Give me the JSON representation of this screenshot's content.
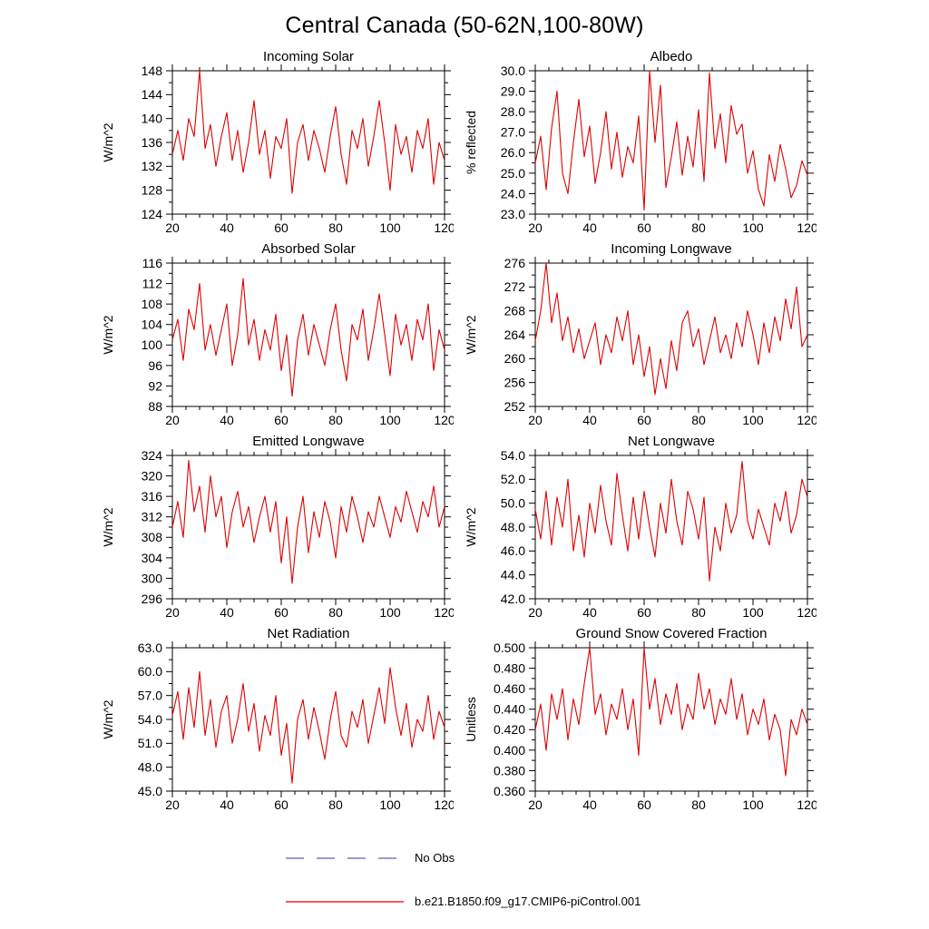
{
  "title": "Central Canada (50-62N,100-80W)",
  "legend": {
    "no_obs_label": "No Obs",
    "no_obs_color": "#7a7ab8",
    "run_label": "b.e21.B1850.f09_g17.CMIP6-piControl.001",
    "run_color": "#dd0000"
  },
  "chart_data": [
    {
      "type": "line",
      "title": "Incoming Solar",
      "ylabel": "W/m^2",
      "ylim": [
        124,
        148
      ],
      "ytick_step": 4,
      "y_decimals": 0,
      "xlim": [
        20,
        120
      ],
      "xticks": [
        20,
        40,
        60,
        80,
        100,
        120
      ],
      "xminor_step": 5,
      "x_start": 20,
      "x_step": 2,
      "grid": false,
      "series": [
        {
          "name": "b.e21.B1850.f09_g17.CMIP6-piControl.001",
          "color": "#dd0000",
          "values": [
            134,
            138,
            133,
            140,
            137,
            148,
            135,
            139,
            132,
            137,
            141,
            133,
            138,
            131,
            136,
            143,
            134,
            138,
            130,
            137,
            135,
            140,
            127.5,
            136,
            139,
            133,
            138,
            135,
            131,
            137,
            142,
            134,
            129,
            138,
            135,
            140,
            132,
            137,
            143,
            136,
            128,
            139,
            134,
            137,
            131,
            138,
            135,
            140,
            129,
            136,
            133
          ]
        }
      ]
    },
    {
      "type": "line",
      "title": "Albedo",
      "ylabel": "% reflected",
      "ylim": [
        23.0,
        30.0
      ],
      "ytick_step": 1.0,
      "y_decimals": 1,
      "xlim": [
        20,
        120
      ],
      "xticks": [
        20,
        40,
        60,
        80,
        100,
        120
      ],
      "xminor_step": 5,
      "x_start": 20,
      "x_step": 2,
      "grid": false,
      "series": [
        {
          "name": "b.e21.B1850.f09_g17.CMIP6-piControl.001",
          "color": "#dd0000",
          "values": [
            25.5,
            26.8,
            24.2,
            27.2,
            29.0,
            25.0,
            24.0,
            26.5,
            28.6,
            25.8,
            27.3,
            24.5,
            26.0,
            28.0,
            25.2,
            27.0,
            24.8,
            26.3,
            25.5,
            27.8,
            23.2,
            30.0,
            26.5,
            29.3,
            24.3,
            25.8,
            27.5,
            24.9,
            26.8,
            25.3,
            28.1,
            24.6,
            29.9,
            26.2,
            27.9,
            25.5,
            28.3,
            26.9,
            27.4,
            25.0,
            26.1,
            24.2,
            23.4,
            25.9,
            24.6,
            26.4,
            25.2,
            23.8,
            24.4,
            25.6,
            24.9
          ]
        }
      ]
    },
    {
      "type": "line",
      "title": "Absorbed Solar",
      "ylabel": "W/m^2",
      "ylim": [
        88,
        116
      ],
      "ytick_step": 4,
      "y_decimals": 0,
      "xlim": [
        20,
        120
      ],
      "xticks": [
        20,
        40,
        60,
        80,
        100,
        120
      ],
      "xminor_step": 5,
      "x_start": 20,
      "x_step": 2,
      "grid": false,
      "series": [
        {
          "name": "b.e21.B1850.f09_g17.CMIP6-piControl.001",
          "color": "#dd0000",
          "values": [
            101,
            105,
            97,
            107,
            103,
            112,
            99,
            104,
            98,
            103,
            108,
            96,
            102,
            113,
            100,
            105,
            97,
            103,
            99,
            106,
            95,
            102,
            90,
            101,
            106,
            98,
            104,
            100,
            96,
            103,
            108,
            99,
            93,
            104,
            101,
            107,
            97,
            103,
            110,
            102,
            94,
            106,
            100,
            104,
            97,
            105,
            101,
            108,
            95,
            103,
            99
          ]
        }
      ]
    },
    {
      "type": "line",
      "title": "Incoming Longwave",
      "ylabel": "W/m^2",
      "ylim": [
        252,
        276
      ],
      "ytick_step": 4,
      "y_decimals": 0,
      "xlim": [
        20,
        120
      ],
      "xticks": [
        20,
        40,
        60,
        80,
        100,
        120
      ],
      "xminor_step": 5,
      "x_start": 20,
      "x_step": 2,
      "grid": false,
      "series": [
        {
          "name": "b.e21.B1850.f09_g17.CMIP6-piControl.001",
          "color": "#dd0000",
          "values": [
            263,
            268,
            276,
            266,
            271,
            263,
            267,
            261,
            265,
            260,
            263,
            266,
            259,
            264,
            261,
            267,
            263,
            268,
            259,
            264,
            257,
            262,
            254,
            260,
            255,
            263,
            258,
            266,
            268,
            262,
            265,
            259,
            263,
            267,
            261,
            264,
            260,
            266,
            262,
            268,
            264,
            259,
            266,
            261,
            267,
            263,
            270,
            265,
            272,
            262,
            264
          ]
        }
      ]
    },
    {
      "type": "line",
      "title": "Emitted Longwave",
      "ylabel": "W/m^2",
      "ylim": [
        296,
        324
      ],
      "ytick_step": 4,
      "y_decimals": 0,
      "xlim": [
        20,
        120
      ],
      "xticks": [
        20,
        40,
        60,
        80,
        100,
        120
      ],
      "xminor_step": 5,
      "x_start": 20,
      "x_step": 2,
      "grid": false,
      "series": [
        {
          "name": "b.e21.B1850.f09_g17.CMIP6-piControl.001",
          "color": "#dd0000",
          "values": [
            310,
            315,
            308,
            323,
            313,
            318,
            309,
            320,
            312,
            316,
            306,
            313,
            317,
            310,
            314,
            307,
            312,
            316,
            309,
            315,
            303,
            312,
            299,
            310,
            316,
            305,
            313,
            308,
            315,
            311,
            304,
            314,
            309,
            316,
            312,
            307,
            313,
            310,
            316,
            312,
            308,
            314,
            311,
            317,
            313,
            309,
            315,
            312,
            318,
            310,
            314
          ]
        }
      ]
    },
    {
      "type": "line",
      "title": "Net Longwave",
      "ylabel": "W/m^2",
      "ylim": [
        42.0,
        54.0
      ],
      "ytick_step": 2.0,
      "y_decimals": 1,
      "xlim": [
        20,
        120
      ],
      "xticks": [
        20,
        40,
        60,
        80,
        100,
        120
      ],
      "xminor_step": 5,
      "x_start": 20,
      "x_step": 2,
      "grid": false,
      "series": [
        {
          "name": "b.e21.B1850.f09_g17.CMIP6-piControl.001",
          "color": "#dd0000",
          "values": [
            49.5,
            47.0,
            51.0,
            46.5,
            50.5,
            48.0,
            52.0,
            46.0,
            49.0,
            45.5,
            50.0,
            47.5,
            51.5,
            48.5,
            46.5,
            52.5,
            49.0,
            46.0,
            50.5,
            47.0,
            51.0,
            48.0,
            45.5,
            50.0,
            47.5,
            52.0,
            48.5,
            46.5,
            51.0,
            49.5,
            47.0,
            50.5,
            43.5,
            48.0,
            46.0,
            50.0,
            47.5,
            49.0,
            53.5,
            48.5,
            47.0,
            49.5,
            48.0,
            46.5,
            50.0,
            48.5,
            51.0,
            47.5,
            49.0,
            52.0,
            50.5
          ]
        }
      ]
    },
    {
      "type": "line",
      "title": "Net Radiation",
      "ylabel": "W/m^2",
      "ylim": [
        45.0,
        63.0
      ],
      "ytick_step": 3.0,
      "y_decimals": 1,
      "xlim": [
        20,
        120
      ],
      "xticks": [
        20,
        40,
        60,
        80,
        100,
        120
      ],
      "xminor_step": 5,
      "x_start": 20,
      "x_step": 2,
      "grid": false,
      "series": [
        {
          "name": "b.e21.B1850.f09_g17.CMIP6-piControl.001",
          "color": "#dd0000",
          "values": [
            54.5,
            57.5,
            51.5,
            58.0,
            53.0,
            60.0,
            52.0,
            56.5,
            50.5,
            55.0,
            57.0,
            51.0,
            54.0,
            58.5,
            52.5,
            56.0,
            50.0,
            54.5,
            52.0,
            57.0,
            49.5,
            53.5,
            46.0,
            54.0,
            56.5,
            51.5,
            55.5,
            52.5,
            49.0,
            54.0,
            57.5,
            52.0,
            50.5,
            55.0,
            53.0,
            56.5,
            51.0,
            54.5,
            58.0,
            53.5,
            60.5,
            55.5,
            52.0,
            56.0,
            50.5,
            54.0,
            52.5,
            57.0,
            51.5,
            55.0,
            53.0
          ]
        }
      ]
    },
    {
      "type": "line",
      "title": "Ground Snow Covered Fraction",
      "ylabel": "Unitless",
      "ylim": [
        0.36,
        0.5
      ],
      "ytick_step": 0.02,
      "y_decimals": 3,
      "xlim": [
        20,
        120
      ],
      "xticks": [
        20,
        40,
        60,
        80,
        100,
        120
      ],
      "xminor_step": 5,
      "x_start": 20,
      "x_step": 2,
      "grid": false,
      "series": [
        {
          "name": "b.e21.B1850.f09_g17.CMIP6-piControl.001",
          "color": "#dd0000",
          "values": [
            0.42,
            0.445,
            0.4,
            0.455,
            0.43,
            0.46,
            0.41,
            0.45,
            0.425,
            0.465,
            0.5,
            0.435,
            0.455,
            0.415,
            0.445,
            0.43,
            0.46,
            0.42,
            0.45,
            0.395,
            0.5,
            0.44,
            0.47,
            0.425,
            0.455,
            0.435,
            0.465,
            0.42,
            0.445,
            0.43,
            0.475,
            0.44,
            0.46,
            0.425,
            0.45,
            0.435,
            0.47,
            0.43,
            0.455,
            0.415,
            0.44,
            0.425,
            0.45,
            0.41,
            0.435,
            0.42,
            0.375,
            0.43,
            0.415,
            0.44,
            0.425
          ]
        }
      ]
    }
  ]
}
